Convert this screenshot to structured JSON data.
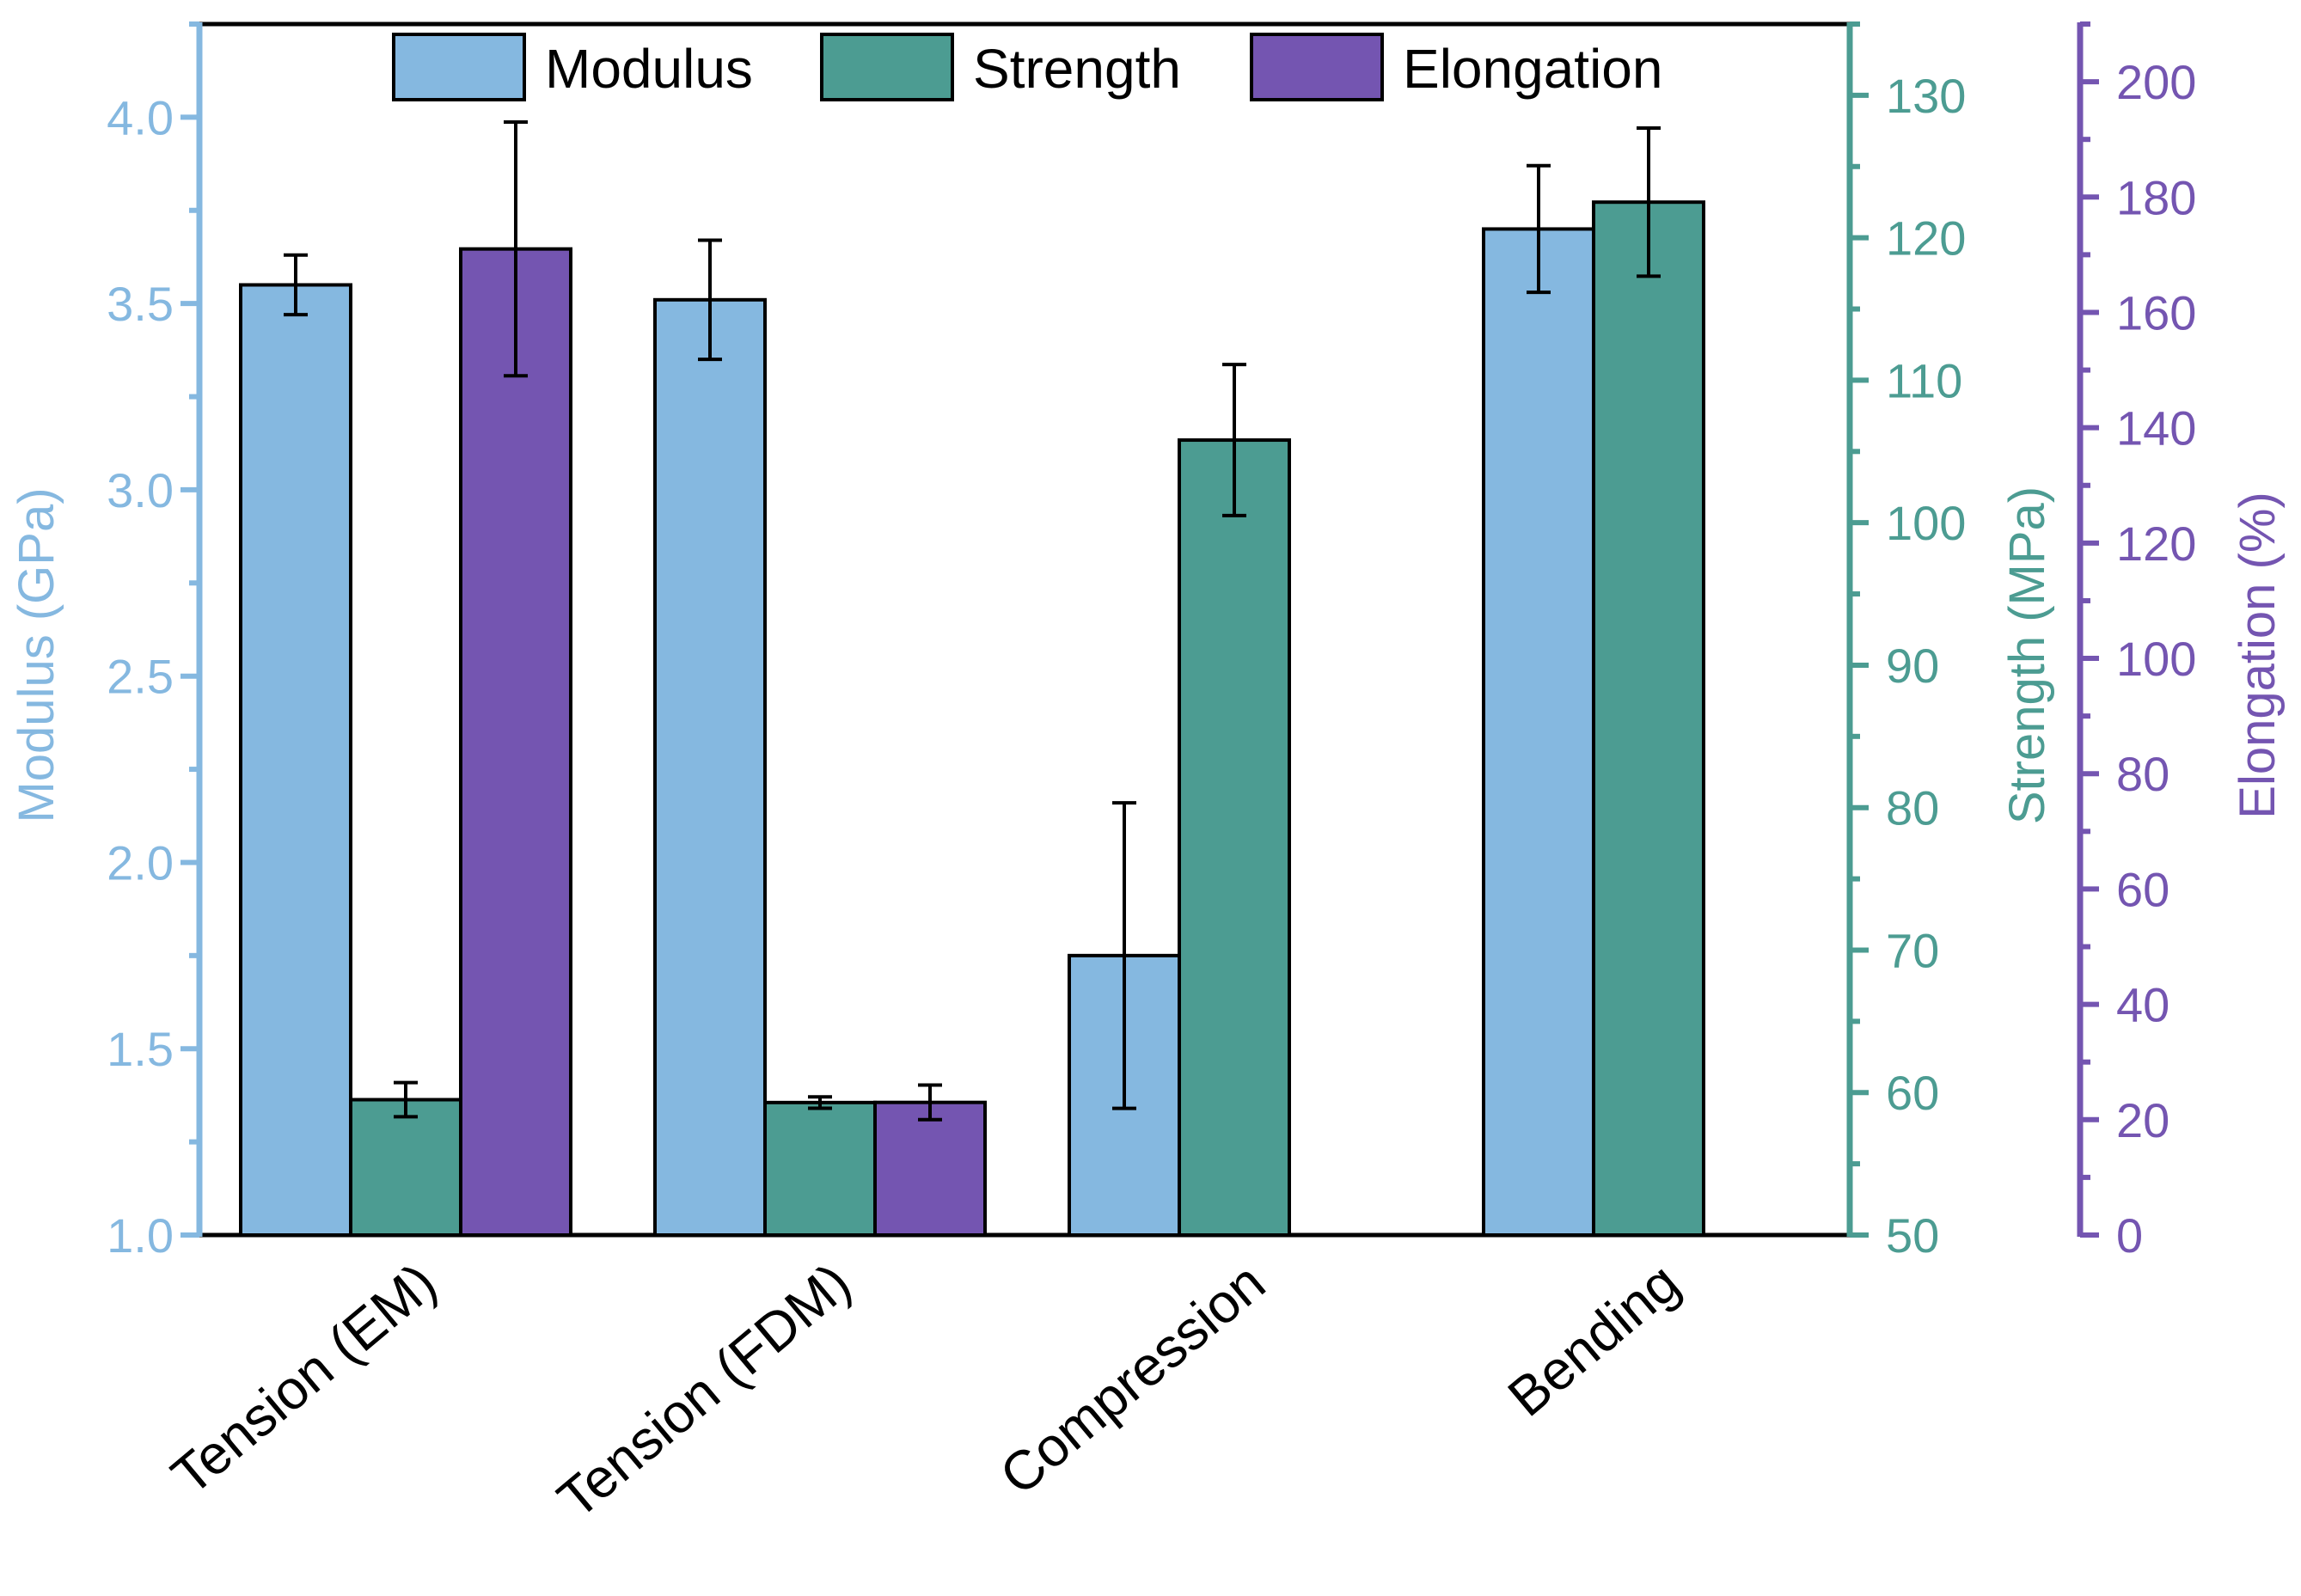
{
  "chart_data": {
    "type": "bar",
    "categories": [
      "Tension (EM)",
      "Tension (FDM)",
      "Compression",
      "Bending"
    ],
    "series": [
      {
        "name": "Modulus",
        "axis": "left",
        "color": "#85b8e0",
        "values": [
          3.55,
          3.51,
          1.75,
          3.7
        ],
        "errors": [
          0.08,
          0.16,
          0.41,
          0.17
        ]
      },
      {
        "name": "Strength",
        "axis": "right1",
        "color": "#4c9c92",
        "values": [
          59.5,
          59.3,
          105.8,
          122.5
        ],
        "errors": [
          1.2,
          0.4,
          5.3,
          5.2
        ]
      },
      {
        "name": "Elongation",
        "axis": "right2",
        "color": "#7455b1",
        "values": [
          171,
          23,
          null,
          null
        ],
        "errors": [
          22,
          3,
          null,
          null
        ]
      }
    ],
    "axes": {
      "left": {
        "title": "Modulus (GPa)",
        "color": "#85b8e0",
        "range": [
          1.0,
          4.25
        ],
        "ticks": [
          1.0,
          1.5,
          2.0,
          2.5,
          3.0,
          3.5,
          4.0
        ],
        "tick_labels": [
          "1.0",
          "1.5",
          "2.0",
          "2.5",
          "3.0",
          "3.5",
          "4.0"
        ],
        "minor_step": 0.25
      },
      "right1": {
        "title": "Strength (MPa)",
        "color": "#4c9c92",
        "range": [
          50,
          135
        ],
        "ticks": [
          50,
          60,
          70,
          80,
          90,
          100,
          110,
          120,
          130
        ],
        "tick_labels": [
          "50",
          "60",
          "70",
          "80",
          "90",
          "100",
          "110",
          "120",
          "130"
        ],
        "minor_step": 5
      },
      "right2": {
        "title": "Elongation (%)",
        "color": "#7455b1",
        "range": [
          0,
          210
        ],
        "ticks": [
          0,
          20,
          40,
          60,
          80,
          100,
          120,
          140,
          160,
          180,
          200
        ],
        "tick_labels": [
          "0",
          "20",
          "40",
          "60",
          "80",
          "100",
          "120",
          "140",
          "160",
          "180",
          "200"
        ],
        "minor_step": 10
      }
    },
    "legend": {
      "position": "top",
      "entries": [
        "Modulus",
        "Strength",
        "Elongation"
      ]
    },
    "grid": false
  }
}
